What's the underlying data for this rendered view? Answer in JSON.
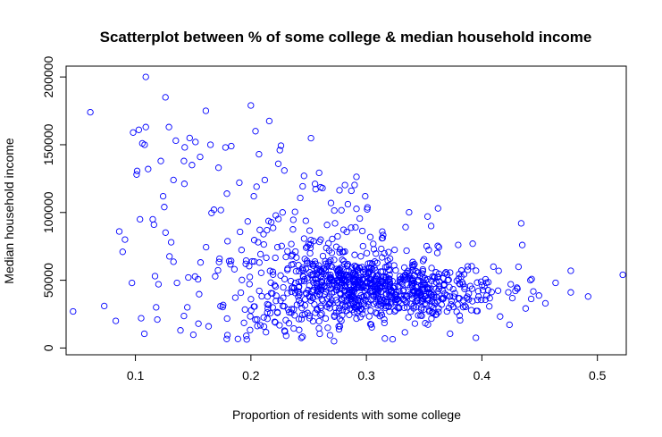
{
  "chart_data": {
    "type": "scatter",
    "title": "Scatterplot between % of some college & median household income",
    "xlabel": "Proportion of residents with some college",
    "ylabel": "Median household income",
    "xlim": [
      0.04,
      0.525
    ],
    "ylim": [
      -5000,
      208000
    ],
    "x_ticks": [
      0.1,
      0.2,
      0.3,
      0.4,
      0.5
    ],
    "x_tick_labels": [
      "0.1",
      "0.2",
      "0.3",
      "0.4",
      "0.5"
    ],
    "y_ticks": [
      0,
      50000,
      100000,
      150000,
      200000
    ],
    "y_tick_labels": [
      "0",
      "50000",
      "100000",
      "150000",
      "200000"
    ],
    "grid": false,
    "marker": "open-circle",
    "point_color": "#0000ff",
    "n_points": 1100,
    "highlight_points": [
      {
        "x": 0.046,
        "y": 27000
      },
      {
        "x": 0.061,
        "y": 174000
      },
      {
        "x": 0.073,
        "y": 31000
      },
      {
        "x": 0.083,
        "y": 20000
      },
      {
        "x": 0.086,
        "y": 86000
      },
      {
        "x": 0.089,
        "y": 71000
      },
      {
        "x": 0.091,
        "y": 80000
      },
      {
        "x": 0.097,
        "y": 48000
      },
      {
        "x": 0.098,
        "y": 159000
      },
      {
        "x": 0.101,
        "y": 128000
      },
      {
        "x": 0.103,
        "y": 161000
      },
      {
        "x": 0.104,
        "y": 95000
      },
      {
        "x": 0.105,
        "y": 22000
      },
      {
        "x": 0.106,
        "y": 151000
      },
      {
        "x": 0.108,
        "y": 150000
      },
      {
        "x": 0.109,
        "y": 163000
      },
      {
        "x": 0.111,
        "y": 132000
      },
      {
        "x": 0.109,
        "y": 200000
      },
      {
        "x": 0.115,
        "y": 95000
      },
      {
        "x": 0.116,
        "y": 91000
      },
      {
        "x": 0.117,
        "y": 53000
      },
      {
        "x": 0.118,
        "y": 30000
      },
      {
        "x": 0.119,
        "y": 21000
      },
      {
        "x": 0.12,
        "y": 47000
      },
      {
        "x": 0.122,
        "y": 138000
      },
      {
        "x": 0.124,
        "y": 112000
      },
      {
        "x": 0.125,
        "y": 104000
      },
      {
        "x": 0.126,
        "y": 185000
      },
      {
        "x": 0.129,
        "y": 163000
      },
      {
        "x": 0.131,
        "y": 78000
      },
      {
        "x": 0.133,
        "y": 124000
      },
      {
        "x": 0.135,
        "y": 153000
      },
      {
        "x": 0.136,
        "y": 48000
      },
      {
        "x": 0.139,
        "y": 13000
      },
      {
        "x": 0.142,
        "y": 138000
      },
      {
        "x": 0.145,
        "y": 30000
      },
      {
        "x": 0.147,
        "y": 155000
      },
      {
        "x": 0.149,
        "y": 135000
      },
      {
        "x": 0.152,
        "y": 152000
      },
      {
        "x": 0.156,
        "y": 141000
      },
      {
        "x": 0.161,
        "y": 175000
      },
      {
        "x": 0.165,
        "y": 150000
      },
      {
        "x": 0.168,
        "y": 102000
      },
      {
        "x": 0.172,
        "y": 133000
      },
      {
        "x": 0.178,
        "y": 148000
      },
      {
        "x": 0.183,
        "y": 149000
      },
      {
        "x": 0.19,
        "y": 122000
      },
      {
        "x": 0.196,
        "y": 9000
      },
      {
        "x": 0.2,
        "y": 179000
      },
      {
        "x": 0.204,
        "y": 160000
      },
      {
        "x": 0.207,
        "y": 143000
      },
      {
        "x": 0.212,
        "y": 124000
      },
      {
        "x": 0.225,
        "y": 146000
      },
      {
        "x": 0.229,
        "y": 131000
      },
      {
        "x": 0.235,
        "y": 26000
      },
      {
        "x": 0.246,
        "y": 127000
      },
      {
        "x": 0.262,
        "y": 118000
      },
      {
        "x": 0.272,
        "y": 5000
      },
      {
        "x": 0.276,
        "y": 16000
      },
      {
        "x": 0.287,
        "y": 116000
      },
      {
        "x": 0.299,
        "y": 112000
      },
      {
        "x": 0.316,
        "y": 7000
      },
      {
        "x": 0.342,
        "y": 18000
      },
      {
        "x": 0.353,
        "y": 97000
      },
      {
        "x": 0.362,
        "y": 103000
      },
      {
        "x": 0.392,
        "y": 77000
      },
      {
        "x": 0.41,
        "y": 60000
      },
      {
        "x": 0.425,
        "y": 47000
      },
      {
        "x": 0.434,
        "y": 92000
      },
      {
        "x": 0.435,
        "y": 76000
      },
      {
        "x": 0.442,
        "y": 50000
      },
      {
        "x": 0.455,
        "y": 33000
      },
      {
        "x": 0.477,
        "y": 57000
      },
      {
        "x": 0.477,
        "y": 41000
      },
      {
        "x": 0.492,
        "y": 38000
      },
      {
        "x": 0.522,
        "y": 54000
      }
    ]
  }
}
